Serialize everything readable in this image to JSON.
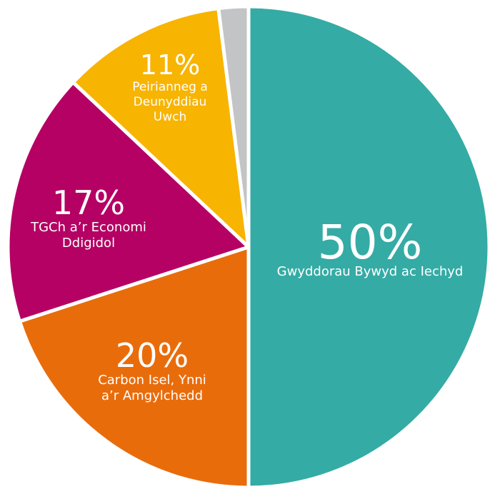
{
  "chart_data": {
    "type": "pie",
    "slices": [
      {
        "percent_label": "50%",
        "value": 50,
        "label_lines": [
          "Gwyddorau Bywyd ac Iechyd"
        ],
        "color": "#35aba5"
      },
      {
        "percent_label": "20%",
        "value": 20,
        "label_lines": [
          "Carbon Isel, Ynni",
          "a’r Amgylchedd"
        ],
        "color": "#e96c0b"
      },
      {
        "percent_label": "17%",
        "value": 17,
        "label_lines": [
          "TGCh a’r Economi",
          "Ddigidol"
        ],
        "color": "#b50064"
      },
      {
        "percent_label": "11%",
        "value": 11,
        "label_lines": [
          "Peirianneg a",
          "Deunyddiau",
          "Uwch"
        ],
        "color": "#f7b400"
      },
      {
        "percent_label": "",
        "value": 2,
        "label_lines": [],
        "color": "#c2c4c6"
      }
    ],
    "start": "12 o'clock",
    "direction": "clockwise",
    "legend": "none"
  }
}
